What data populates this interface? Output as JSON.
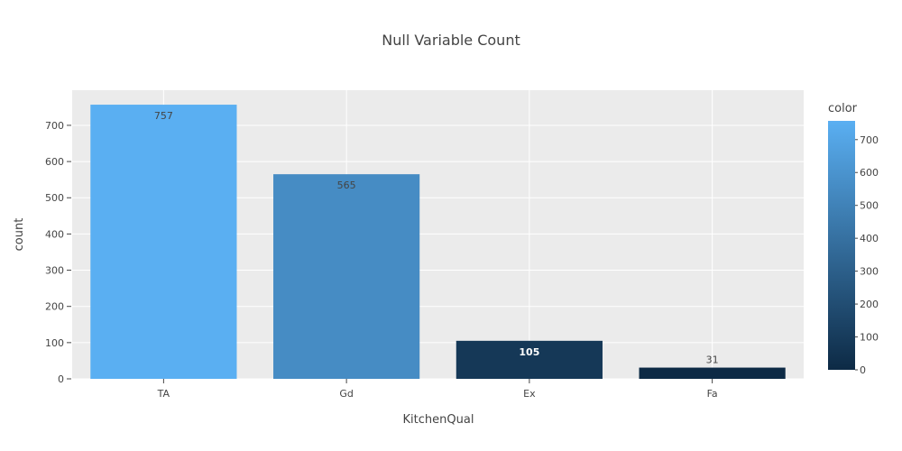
{
  "chart_data": {
    "type": "bar",
    "title": "Null Variable Count",
    "xlabel": "KitchenQual",
    "ylabel": "count",
    "categories": [
      "TA",
      "Gd",
      "Ex",
      "Fa"
    ],
    "values": [
      757,
      565,
      105,
      31
    ],
    "data_labels": [
      "757",
      "565",
      "105",
      "31"
    ],
    "ylim": [
      0,
      797
    ],
    "yticks": [
      0,
      100,
      200,
      300,
      400,
      500,
      600,
      700
    ],
    "ytick_labels": [
      "0",
      "100",
      "200",
      "300",
      "400",
      "500",
      "600",
      "700"
    ],
    "grid": true,
    "colorbar": {
      "title": "color",
      "range": [
        31,
        757
      ],
      "ticks": [
        0,
        100,
        200,
        300,
        400,
        500,
        600,
        700
      ],
      "tick_labels": [
        "0",
        "100",
        "200",
        "300",
        "400",
        "500",
        "600",
        "700"
      ],
      "colors": {
        "low": "#0d2a45",
        "high": "#5aaff2"
      }
    },
    "colors": {
      "plot_background": "#ebebeb",
      "grid": "#ffffff"
    }
  }
}
